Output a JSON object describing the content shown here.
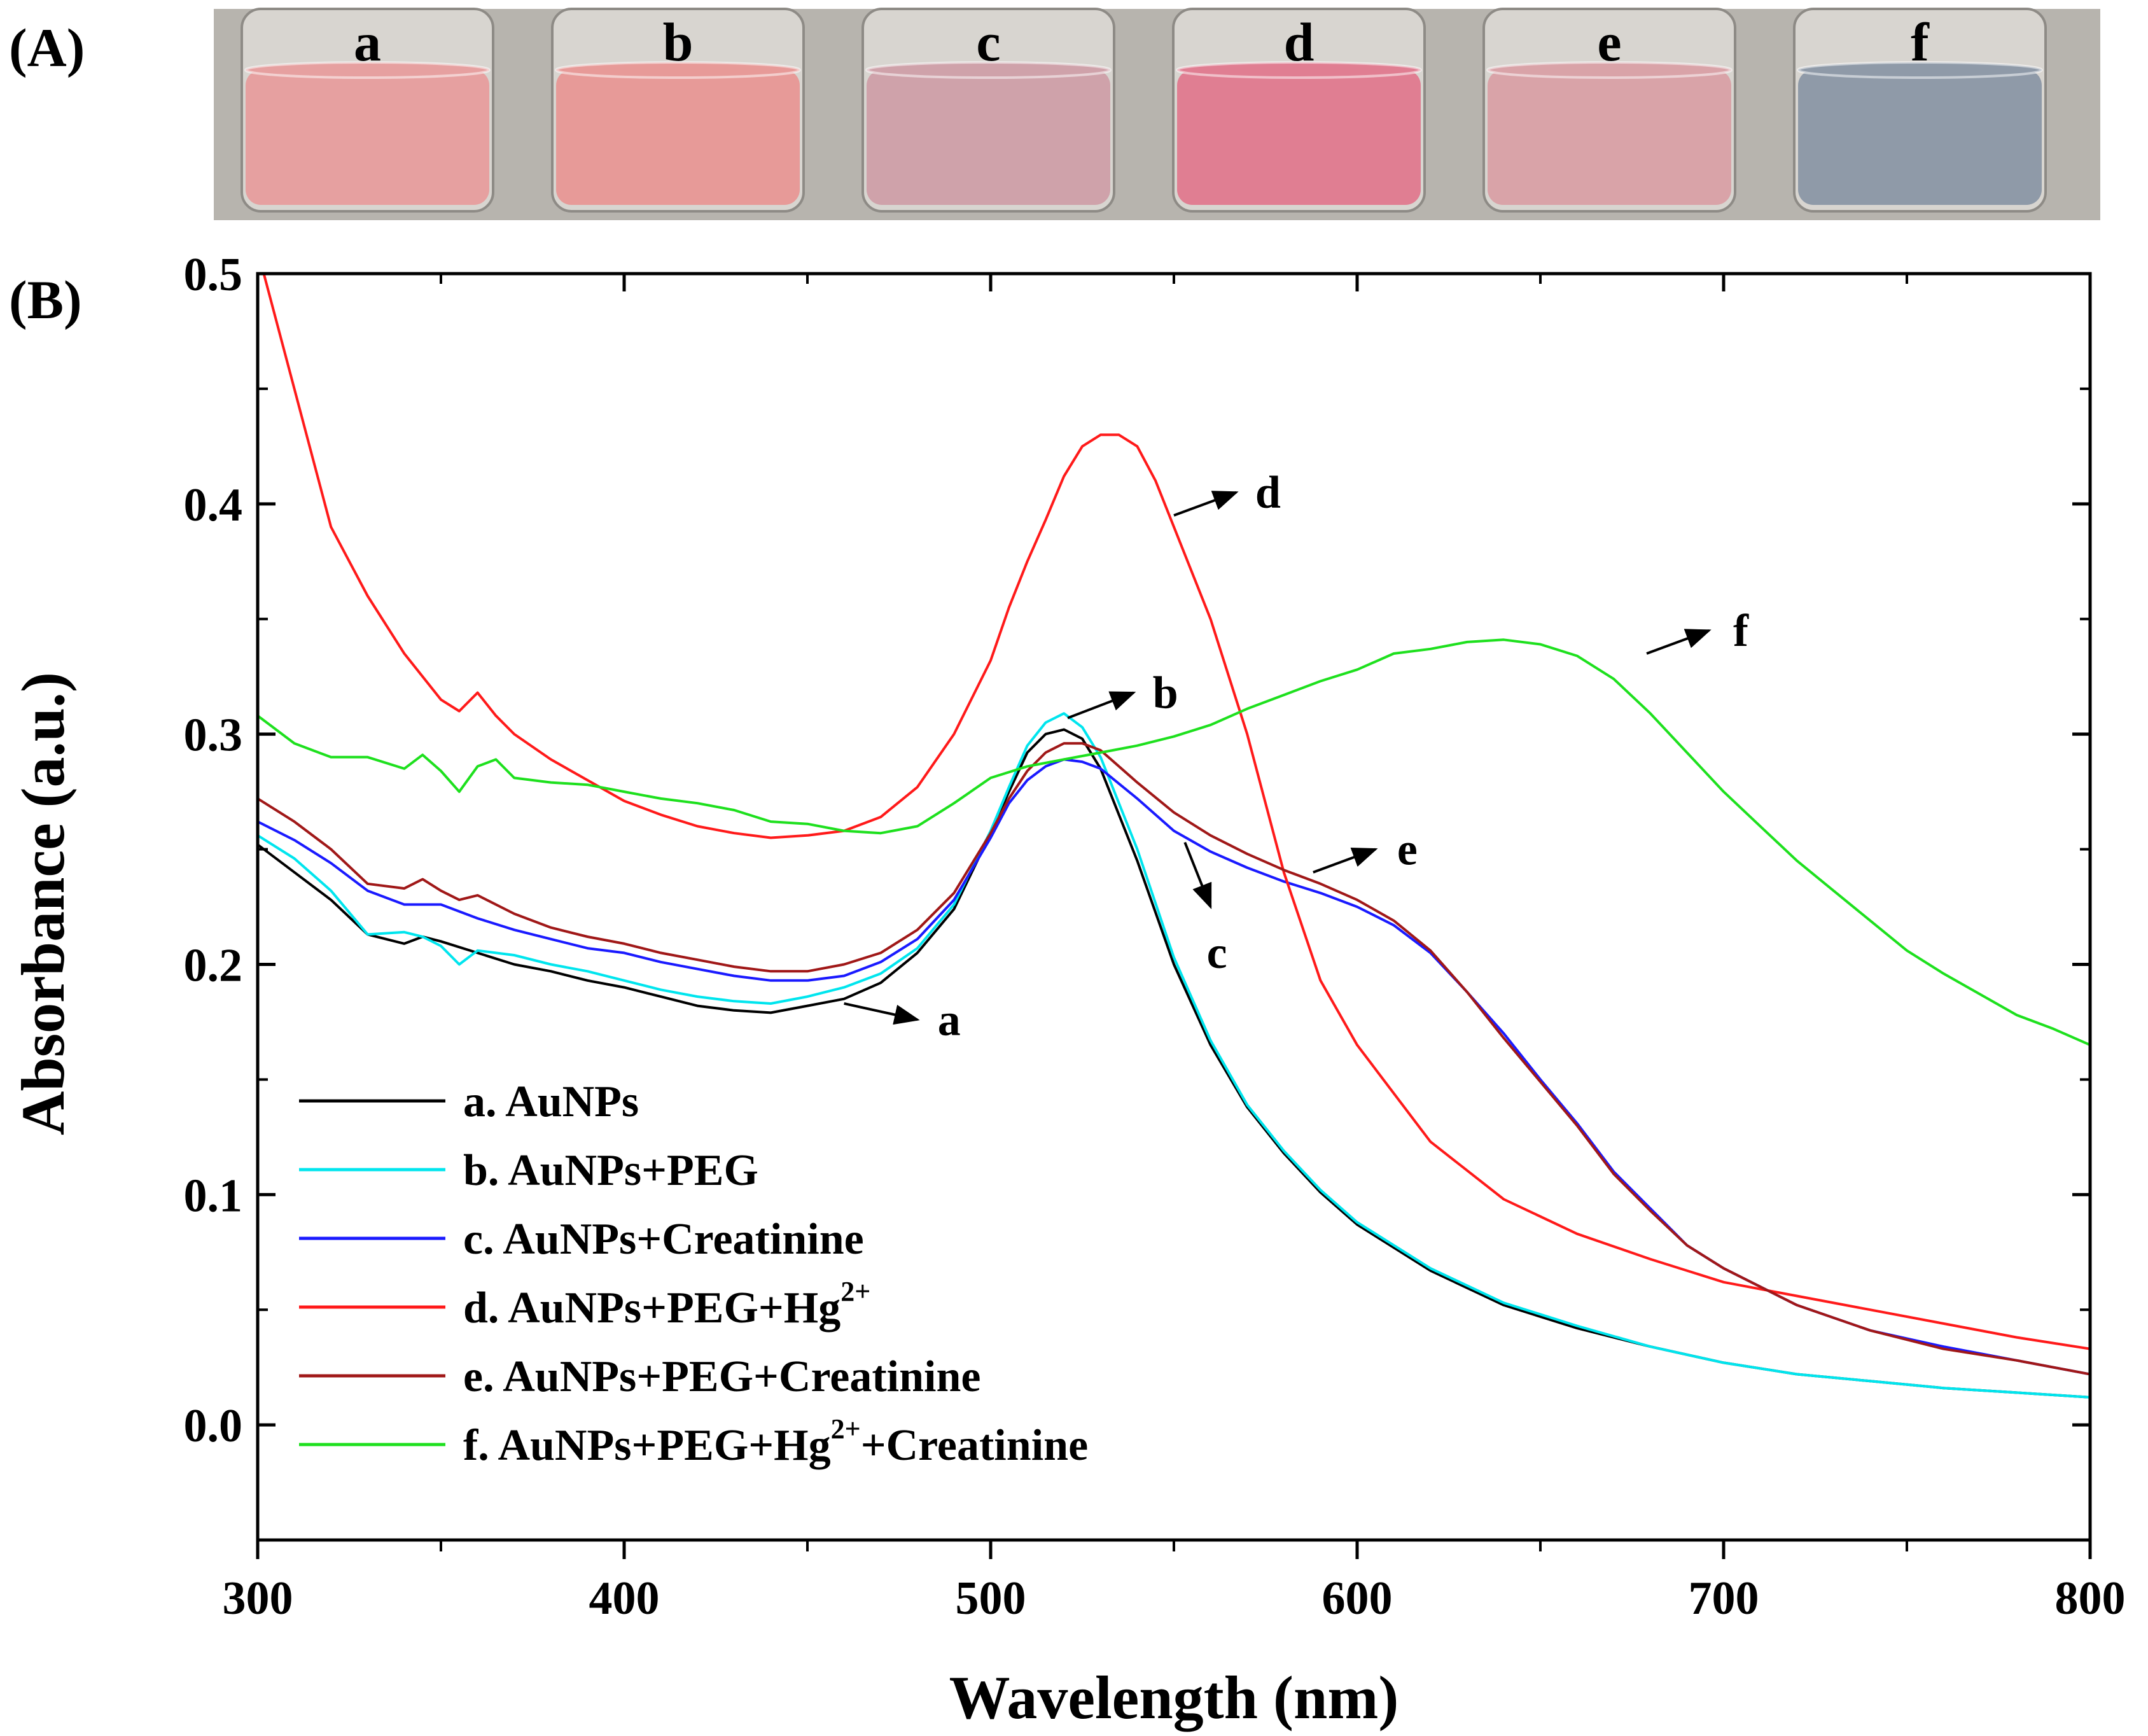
{
  "panels": {
    "A": "(A)",
    "B": "(B)"
  },
  "photo": {
    "vials": [
      {
        "letter": "a",
        "color": "#e6a0a0"
      },
      {
        "letter": "b",
        "color": "#e79a98"
      },
      {
        "letter": "c",
        "color": "#cfa2aa"
      },
      {
        "letter": "d",
        "color": "#e07e92"
      },
      {
        "letter": "e",
        "color": "#d9a3a8"
      },
      {
        "letter": "f",
        "color": "#8f9aa8"
      }
    ],
    "background": "#b7b4ae"
  },
  "chart_data": {
    "type": "line",
    "xlabel": "Wavelength (nm)",
    "ylabel": "Absorbance (a.u.)",
    "xlim": [
      300,
      800
    ],
    "ylim": [
      -0.05,
      0.5
    ],
    "xticks": [
      300,
      400,
      500,
      600,
      700,
      800
    ],
    "xtick_labels": [
      "300",
      "400",
      "500",
      "600",
      "700",
      "800"
    ],
    "yticks": [
      0.0,
      0.1,
      0.2,
      0.3,
      0.4,
      0.5
    ],
    "ytick_labels": [
      "0.0",
      "0.1",
      "0.2",
      "0.3",
      "0.4",
      "0.5"
    ],
    "legend_position": "bottom-left",
    "series": [
      {
        "key": "a",
        "name": "a. AuNPs",
        "color": "#000000",
        "x": [
          300,
          310,
          320,
          330,
          340,
          345,
          350,
          360,
          370,
          380,
          390,
          400,
          410,
          420,
          430,
          440,
          450,
          460,
          470,
          480,
          490,
          500,
          505,
          510,
          515,
          520,
          525,
          530,
          540,
          550,
          560,
          570,
          580,
          590,
          600,
          620,
          640,
          660,
          680,
          700,
          720,
          740,
          760,
          780,
          800
        ],
        "y": [
          0.252,
          0.24,
          0.228,
          0.213,
          0.209,
          0.212,
          0.21,
          0.205,
          0.2,
          0.197,
          0.193,
          0.19,
          0.186,
          0.182,
          0.18,
          0.179,
          0.182,
          0.185,
          0.192,
          0.205,
          0.224,
          0.257,
          0.275,
          0.292,
          0.3,
          0.302,
          0.298,
          0.285,
          0.245,
          0.2,
          0.165,
          0.138,
          0.118,
          0.101,
          0.087,
          0.067,
          0.052,
          0.042,
          0.034,
          0.027,
          0.022,
          0.019,
          0.016,
          0.014,
          0.012
        ]
      },
      {
        "key": "b",
        "name": "b. AuNPs+PEG",
        "color": "#00e5ee",
        "x": [
          300,
          310,
          320,
          330,
          340,
          345,
          350,
          355,
          360,
          370,
          380,
          390,
          400,
          410,
          420,
          430,
          440,
          450,
          460,
          470,
          480,
          490,
          500,
          505,
          510,
          515,
          520,
          525,
          530,
          540,
          550,
          560,
          570,
          580,
          590,
          600,
          620,
          640,
          660,
          680,
          700,
          720,
          740,
          760,
          780,
          800
        ],
        "y": [
          0.256,
          0.246,
          0.232,
          0.213,
          0.214,
          0.212,
          0.208,
          0.2,
          0.206,
          0.204,
          0.2,
          0.197,
          0.193,
          0.189,
          0.186,
          0.184,
          0.183,
          0.186,
          0.19,
          0.196,
          0.207,
          0.226,
          0.258,
          0.277,
          0.295,
          0.305,
          0.309,
          0.303,
          0.29,
          0.25,
          0.203,
          0.167,
          0.139,
          0.119,
          0.102,
          0.088,
          0.068,
          0.053,
          0.043,
          0.034,
          0.027,
          0.022,
          0.019,
          0.016,
          0.014,
          0.012
        ]
      },
      {
        "key": "c",
        "name": "c. AuNPs+Creatinine",
        "color": "#1a1aff",
        "x": [
          300,
          310,
          320,
          330,
          340,
          350,
          360,
          370,
          380,
          390,
          400,
          410,
          420,
          430,
          440,
          450,
          460,
          470,
          480,
          490,
          500,
          505,
          510,
          515,
          520,
          525,
          530,
          540,
          550,
          560,
          570,
          580,
          590,
          600,
          610,
          620,
          630,
          640,
          650,
          660,
          670,
          680,
          690,
          700,
          720,
          740,
          760,
          780,
          800
        ],
        "y": [
          0.262,
          0.254,
          0.244,
          0.232,
          0.226,
          0.226,
          0.22,
          0.215,
          0.211,
          0.207,
          0.205,
          0.201,
          0.198,
          0.195,
          0.193,
          0.193,
          0.195,
          0.201,
          0.211,
          0.228,
          0.255,
          0.27,
          0.28,
          0.286,
          0.289,
          0.288,
          0.285,
          0.272,
          0.258,
          0.249,
          0.242,
          0.236,
          0.231,
          0.225,
          0.217,
          0.205,
          0.188,
          0.17,
          0.15,
          0.131,
          0.11,
          0.094,
          0.078,
          0.068,
          0.052,
          0.041,
          0.034,
          0.028,
          0.022
        ]
      },
      {
        "key": "d",
        "name": "d. AuNPs+PEG+Hg",
        "sup": "2+",
        "color": "#ff1a1a",
        "x": [
          300,
          305,
          310,
          315,
          320,
          325,
          330,
          340,
          350,
          355,
          360,
          365,
          370,
          380,
          390,
          400,
          410,
          420,
          430,
          440,
          450,
          460,
          470,
          480,
          490,
          500,
          505,
          510,
          515,
          520,
          525,
          530,
          535,
          540,
          545,
          550,
          555,
          560,
          570,
          580,
          590,
          600,
          620,
          640,
          660,
          680,
          700,
          720,
          740,
          760,
          780,
          800
        ],
        "y": [
          0.51,
          0.48,
          0.45,
          0.42,
          0.39,
          0.375,
          0.36,
          0.335,
          0.315,
          0.31,
          0.318,
          0.308,
          0.3,
          0.289,
          0.28,
          0.271,
          0.265,
          0.26,
          0.257,
          0.255,
          0.256,
          0.258,
          0.264,
          0.277,
          0.3,
          0.332,
          0.355,
          0.375,
          0.393,
          0.412,
          0.425,
          0.43,
          0.43,
          0.425,
          0.41,
          0.39,
          0.37,
          0.35,
          0.3,
          0.24,
          0.193,
          0.165,
          0.123,
          0.098,
          0.083,
          0.072,
          0.062,
          0.056,
          0.05,
          0.044,
          0.038,
          0.033
        ]
      },
      {
        "key": "e",
        "name": "e. AuNPs+PEG+Creatinine",
        "color": "#a01818",
        "x": [
          300,
          310,
          320,
          330,
          340,
          345,
          350,
          355,
          360,
          370,
          380,
          390,
          400,
          410,
          420,
          430,
          440,
          450,
          460,
          470,
          480,
          490,
          500,
          505,
          510,
          515,
          520,
          525,
          530,
          540,
          550,
          560,
          570,
          580,
          590,
          600,
          610,
          620,
          630,
          640,
          650,
          660,
          670,
          680,
          690,
          700,
          720,
          740,
          760,
          780,
          800
        ],
        "y": [
          0.272,
          0.262,
          0.25,
          0.235,
          0.233,
          0.237,
          0.232,
          0.228,
          0.23,
          0.222,
          0.216,
          0.212,
          0.209,
          0.205,
          0.202,
          0.199,
          0.197,
          0.197,
          0.2,
          0.205,
          0.215,
          0.231,
          0.257,
          0.272,
          0.284,
          0.292,
          0.296,
          0.296,
          0.293,
          0.279,
          0.266,
          0.256,
          0.248,
          0.241,
          0.235,
          0.228,
          0.219,
          0.206,
          0.188,
          0.168,
          0.149,
          0.13,
          0.109,
          0.093,
          0.078,
          0.068,
          0.052,
          0.041,
          0.033,
          0.028,
          0.022
        ]
      },
      {
        "key": "f",
        "name": "f. AuNPs+PEG+Hg",
        "sup": "2+",
        "suffix": "+Creatinine",
        "color": "#1ee01e",
        "x": [
          300,
          310,
          320,
          330,
          340,
          345,
          350,
          355,
          360,
          365,
          370,
          380,
          390,
          400,
          410,
          420,
          430,
          440,
          450,
          460,
          470,
          480,
          490,
          500,
          510,
          520,
          530,
          540,
          550,
          560,
          570,
          580,
          590,
          600,
          610,
          620,
          630,
          640,
          650,
          660,
          670,
          680,
          690,
          700,
          710,
          720,
          730,
          740,
          750,
          760,
          770,
          780,
          790,
          800
        ],
        "y": [
          0.308,
          0.296,
          0.29,
          0.29,
          0.285,
          0.291,
          0.284,
          0.275,
          0.286,
          0.289,
          0.281,
          0.279,
          0.278,
          0.275,
          0.272,
          0.27,
          0.267,
          0.262,
          0.261,
          0.258,
          0.257,
          0.26,
          0.27,
          0.281,
          0.286,
          0.289,
          0.292,
          0.295,
          0.299,
          0.304,
          0.311,
          0.317,
          0.323,
          0.328,
          0.335,
          0.337,
          0.34,
          0.341,
          0.339,
          0.334,
          0.324,
          0.309,
          0.292,
          0.275,
          0.26,
          0.245,
          0.232,
          0.219,
          0.206,
          0.196,
          0.187,
          0.178,
          0.172,
          0.165
        ]
      }
    ],
    "annotations": [
      {
        "key": "a",
        "text": "a",
        "from": [
          460,
          0.183
        ],
        "to": [
          480,
          0.176
        ]
      },
      {
        "key": "b",
        "text": "b",
        "from": [
          521,
          0.307
        ],
        "to": [
          539,
          0.318
        ]
      },
      {
        "key": "c",
        "text": "c",
        "from": [
          553,
          0.253
        ],
        "to": [
          560,
          0.225
        ]
      },
      {
        "key": "d",
        "text": "d",
        "from": [
          550,
          0.395
        ],
        "to": [
          567,
          0.405
        ]
      },
      {
        "key": "e",
        "text": "e",
        "from": [
          588,
          0.24
        ],
        "to": [
          605,
          0.25
        ]
      },
      {
        "key": "f",
        "text": "f",
        "from": [
          679,
          0.335
        ],
        "to": [
          696,
          0.345
        ]
      }
    ]
  }
}
